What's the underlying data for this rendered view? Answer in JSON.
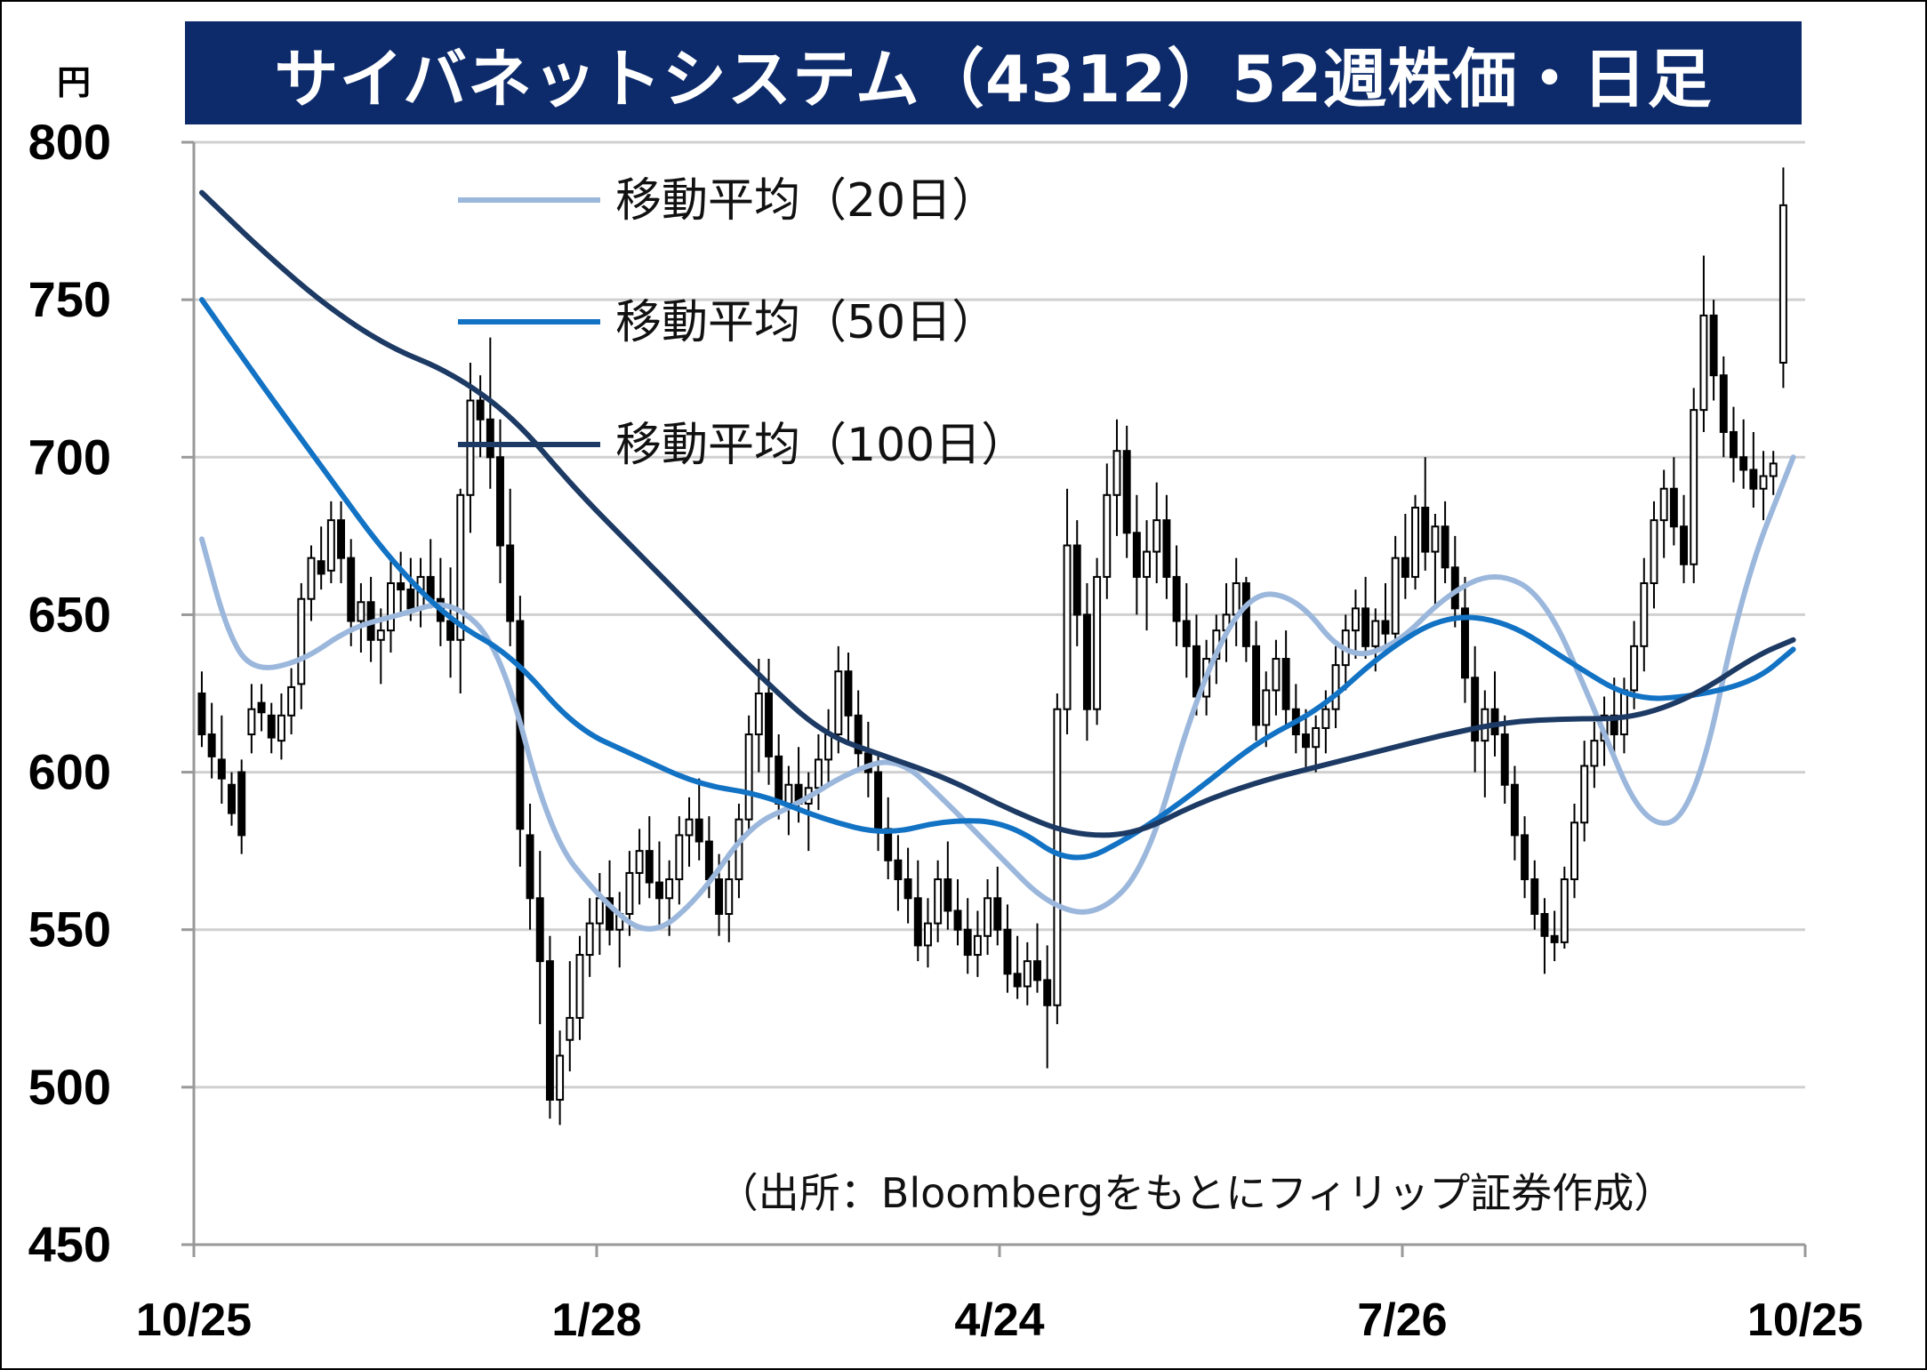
{
  "title": "サイバネットシステム（4312）52週株価・日足",
  "y_unit": "円",
  "source": "（出所：Bloombergをもとにフィリップ証券作成）",
  "colors": {
    "title_bg": "#0d2b6b",
    "ma20": "#9bb7dc",
    "ma50": "#1272c4",
    "ma100": "#1c3a64",
    "candle": "#000000",
    "grid": "#d0d0d0"
  },
  "chart_data": {
    "type": "candlestick",
    "ylim": [
      450,
      800
    ],
    "yticks": [
      450,
      500,
      550,
      600,
      650,
      700,
      750,
      800
    ],
    "xticks": [
      "10/25",
      "1/28",
      "4/24",
      "7/26",
      "10/25"
    ],
    "legend": [
      {
        "label": "移動平均（20日）",
        "color": "#9bb7dc"
      },
      {
        "label": "移動平均（50日）",
        "color": "#1272c4"
      },
      {
        "label": "移動平均（100日）",
        "color": "#1c3a64"
      }
    ],
    "ma_series": [
      {
        "name": "移動平均（20日）",
        "color": "#9bb7dc",
        "x": [
          0,
          4,
          8,
          16,
          24,
          32,
          40,
          48,
          56,
          64,
          72,
          80,
          88,
          96,
          104,
          112,
          120,
          128,
          136,
          144,
          152,
          160,
          168,
          176,
          184,
          192,
          200,
          208,
          216,
          224,
          232,
          240,
          248,
          256
        ],
        "y": [
          674,
          645,
          632,
          635,
          646,
          650,
          655,
          640,
          580,
          560,
          547,
          560,
          583,
          590,
          600,
          605,
          590,
          574,
          558,
          554,
          570,
          625,
          657,
          656,
          636,
          640,
          656,
          664,
          656,
          620,
          582,
          586,
          660,
          700
        ]
      },
      {
        "name": "移動平均（50日）",
        "color": "#1272c4",
        "x": [
          0,
          10,
          20,
          30,
          40,
          50,
          60,
          70,
          80,
          90,
          100,
          110,
          120,
          130,
          140,
          150,
          160,
          170,
          180,
          190,
          200,
          210,
          220,
          230,
          240,
          250,
          256
        ],
        "y": [
          750,
          722,
          695,
          668,
          648,
          637,
          614,
          605,
          596,
          593,
          585,
          580,
          585,
          584,
          570,
          580,
          594,
          610,
          620,
          638,
          650,
          648,
          635,
          623,
          624,
          629,
          639
        ]
      },
      {
        "name": "移動平均（100日）",
        "color": "#1c3a64",
        "x": [
          0,
          10,
          20,
          30,
          40,
          50,
          60,
          70,
          80,
          90,
          100,
          110,
          120,
          130,
          140,
          150,
          160,
          170,
          180,
          190,
          200,
          210,
          220,
          230,
          240,
          250,
          256
        ],
        "y": [
          784,
          765,
          748,
          735,
          727,
          713,
          690,
          670,
          650,
          630,
          612,
          605,
          598,
          588,
          580,
          580,
          590,
          597,
          602,
          607,
          612,
          616,
          617,
          617,
          624,
          637,
          642
        ]
      }
    ],
    "candles": [
      [
        0,
        625,
        632,
        608,
        612
      ],
      [
        1,
        612,
        622,
        598,
        605
      ],
      [
        2,
        604,
        618,
        590,
        598
      ],
      [
        3,
        596,
        600,
        583,
        587
      ],
      [
        4,
        600,
        604,
        574,
        580
      ],
      [
        5,
        612,
        628,
        606,
        620
      ],
      [
        6,
        622,
        628,
        613,
        619
      ],
      [
        7,
        618,
        622,
        606,
        611
      ],
      [
        8,
        610,
        625,
        604,
        618
      ],
      [
        9,
        618,
        633,
        612,
        627
      ],
      [
        10,
        628,
        660,
        620,
        655
      ],
      [
        11,
        655,
        672,
        648,
        668
      ],
      [
        12,
        667,
        678,
        658,
        663
      ],
      [
        13,
        664,
        686,
        660,
        680
      ],
      [
        14,
        680,
        686,
        660,
        668
      ],
      [
        15,
        668,
        674,
        640,
        648
      ],
      [
        16,
        648,
        660,
        638,
        654
      ],
      [
        17,
        654,
        662,
        635,
        642
      ],
      [
        18,
        642,
        652,
        628,
        645
      ],
      [
        19,
        645,
        668,
        638,
        660
      ],
      [
        20,
        660,
        670,
        650,
        658
      ],
      [
        21,
        658,
        668,
        648,
        652
      ],
      [
        22,
        652,
        668,
        646,
        662
      ],
      [
        23,
        662,
        674,
        652,
        655
      ],
      [
        24,
        655,
        668,
        640,
        648
      ],
      [
        25,
        648,
        665,
        630,
        642
      ],
      [
        26,
        642,
        690,
        625,
        688
      ],
      [
        27,
        688,
        730,
        676,
        718
      ],
      [
        28,
        718,
        726,
        700,
        712
      ],
      [
        29,
        712,
        738,
        690,
        700
      ],
      [
        30,
        700,
        712,
        660,
        672
      ],
      [
        31,
        672,
        690,
        640,
        648
      ],
      [
        32,
        648,
        656,
        570,
        582
      ],
      [
        33,
        580,
        590,
        550,
        560
      ],
      [
        34,
        560,
        575,
        520,
        540
      ],
      [
        35,
        540,
        548,
        490,
        496
      ],
      [
        36,
        496,
        518,
        488,
        510
      ],
      [
        37,
        515,
        540,
        505,
        522
      ],
      [
        38,
        522,
        548,
        515,
        542
      ],
      [
        39,
        542,
        560,
        535,
        552
      ],
      [
        40,
        552,
        568,
        542,
        560
      ],
      [
        41,
        560,
        572,
        545,
        550
      ],
      [
        42,
        550,
        562,
        538,
        555
      ],
      [
        43,
        555,
        575,
        548,
        568
      ],
      [
        44,
        568,
        582,
        558,
        575
      ],
      [
        45,
        575,
        586,
        560,
        565
      ],
      [
        46,
        565,
        578,
        550,
        560
      ],
      [
        47,
        560,
        572,
        548,
        566
      ],
      [
        48,
        566,
        586,
        558,
        580
      ],
      [
        49,
        580,
        592,
        570,
        585
      ],
      [
        50,
        585,
        598,
        572,
        578
      ],
      [
        51,
        578,
        586,
        560,
        566
      ],
      [
        52,
        566,
        574,
        548,
        555
      ],
      [
        53,
        555,
        572,
        546,
        566
      ],
      [
        54,
        566,
        590,
        560,
        585
      ],
      [
        55,
        585,
        618,
        580,
        612
      ],
      [
        56,
        612,
        636,
        600,
        625
      ],
      [
        57,
        625,
        636,
        596,
        605
      ],
      [
        58,
        605,
        612,
        585,
        590
      ],
      [
        59,
        590,
        602,
        580,
        596
      ],
      [
        60,
        596,
        608,
        584,
        590
      ],
      [
        61,
        590,
        600,
        575,
        595
      ],
      [
        62,
        595,
        612,
        588,
        604
      ],
      [
        63,
        604,
        620,
        596,
        612
      ],
      [
        64,
        612,
        640,
        606,
        632
      ],
      [
        65,
        632,
        638,
        610,
        618
      ],
      [
        66,
        618,
        626,
        600,
        606
      ],
      [
        67,
        606,
        616,
        592,
        600
      ],
      [
        68,
        600,
        606,
        575,
        582
      ],
      [
        69,
        582,
        592,
        566,
        572
      ],
      [
        70,
        572,
        580,
        556,
        566
      ],
      [
        71,
        566,
        576,
        552,
        560
      ],
      [
        72,
        560,
        572,
        540,
        545
      ],
      [
        73,
        545,
        560,
        538,
        552
      ],
      [
        74,
        552,
        572,
        546,
        566
      ],
      [
        75,
        566,
        578,
        550,
        556
      ],
      [
        76,
        556,
        566,
        545,
        550
      ],
      [
        77,
        550,
        560,
        536,
        542
      ],
      [
        78,
        542,
        556,
        535,
        548
      ],
      [
        79,
        548,
        566,
        542,
        560
      ],
      [
        80,
        560,
        570,
        545,
        550
      ],
      [
        81,
        550,
        558,
        530,
        536
      ],
      [
        82,
        536,
        548,
        528,
        532
      ],
      [
        83,
        532,
        546,
        526,
        540
      ],
      [
        84,
        540,
        552,
        530,
        534
      ],
      [
        85,
        534,
        545,
        506,
        526
      ],
      [
        86,
        526,
        625,
        520,
        620
      ],
      [
        87,
        620,
        690,
        612,
        672
      ],
      [
        88,
        672,
        680,
        640,
        650
      ],
      [
        89,
        650,
        660,
        610,
        620
      ],
      [
        90,
        620,
        668,
        615,
        662
      ],
      [
        91,
        662,
        698,
        655,
        688
      ],
      [
        92,
        688,
        712,
        675,
        702
      ],
      [
        93,
        702,
        710,
        668,
        676
      ],
      [
        94,
        676,
        688,
        650,
        662
      ],
      [
        95,
        662,
        680,
        645,
        670
      ],
      [
        96,
        670,
        692,
        660,
        680
      ],
      [
        97,
        680,
        688,
        655,
        662
      ],
      [
        98,
        662,
        672,
        640,
        648
      ],
      [
        99,
        648,
        660,
        630,
        640
      ],
      [
        100,
        640,
        650,
        618,
        624
      ],
      [
        101,
        624,
        642,
        618,
        636
      ],
      [
        102,
        636,
        650,
        628,
        645
      ],
      [
        103,
        645,
        660,
        635,
        650
      ],
      [
        104,
        650,
        668,
        640,
        660
      ],
      [
        105,
        660,
        662,
        635,
        640
      ],
      [
        106,
        640,
        648,
        610,
        615
      ],
      [
        107,
        615,
        632,
        608,
        626
      ],
      [
        108,
        626,
        642,
        618,
        636
      ],
      [
        109,
        636,
        645,
        615,
        620
      ],
      [
        110,
        620,
        628,
        606,
        612
      ],
      [
        111,
        612,
        620,
        600,
        608
      ],
      [
        112,
        608,
        618,
        600,
        614
      ],
      [
        113,
        614,
        626,
        606,
        620
      ],
      [
        114,
        620,
        640,
        614,
        634
      ],
      [
        115,
        634,
        650,
        626,
        645
      ],
      [
        116,
        645,
        658,
        636,
        652
      ],
      [
        117,
        652,
        662,
        636,
        640
      ],
      [
        118,
        640,
        652,
        632,
        648
      ],
      [
        119,
        648,
        660,
        640,
        644
      ],
      [
        120,
        644,
        675,
        640,
        668
      ],
      [
        121,
        668,
        682,
        655,
        662
      ],
      [
        122,
        662,
        688,
        658,
        684
      ],
      [
        123,
        684,
        700,
        664,
        670
      ],
      [
        124,
        670,
        682,
        652,
        678
      ],
      [
        125,
        678,
        686,
        660,
        665
      ],
      [
        126,
        665,
        675,
        646,
        652
      ],
      [
        127,
        652,
        662,
        622,
        630
      ],
      [
        128,
        630,
        640,
        600,
        610
      ],
      [
        129,
        610,
        626,
        592,
        620
      ],
      [
        130,
        620,
        632,
        605,
        612
      ],
      [
        131,
        612,
        618,
        590,
        596
      ],
      [
        132,
        596,
        602,
        572,
        580
      ],
      [
        133,
        580,
        586,
        560,
        566
      ],
      [
        134,
        566,
        572,
        550,
        555
      ],
      [
        135,
        555,
        560,
        536,
        548
      ],
      [
        136,
        548,
        556,
        540,
        546
      ],
      [
        137,
        546,
        570,
        544,
        566
      ],
      [
        138,
        566,
        590,
        560,
        584
      ],
      [
        139,
        584,
        610,
        578,
        602
      ],
      [
        140,
        602,
        616,
        595,
        610
      ],
      [
        141,
        610,
        624,
        602,
        618
      ],
      [
        142,
        618,
        630,
        606,
        612
      ],
      [
        143,
        612,
        630,
        606,
        626
      ],
      [
        144,
        626,
        648,
        620,
        640
      ],
      [
        145,
        640,
        668,
        632,
        660
      ],
      [
        146,
        660,
        686,
        652,
        680
      ],
      [
        147,
        680,
        696,
        668,
        690
      ],
      [
        148,
        690,
        700,
        672,
        678
      ],
      [
        149,
        678,
        688,
        660,
        666
      ],
      [
        150,
        666,
        722,
        660,
        715
      ],
      [
        151,
        715,
        764,
        708,
        745
      ],
      [
        152,
        745,
        750,
        718,
        726
      ],
      [
        153,
        726,
        732,
        700,
        708
      ],
      [
        154,
        708,
        716,
        692,
        700
      ],
      [
        155,
        700,
        712,
        690,
        696
      ],
      [
        156,
        696,
        708,
        684,
        690
      ],
      [
        157,
        690,
        702,
        680,
        694
      ],
      [
        158,
        694,
        702,
        688,
        698
      ],
      [
        159,
        730,
        792,
        722,
        780
      ]
    ]
  }
}
